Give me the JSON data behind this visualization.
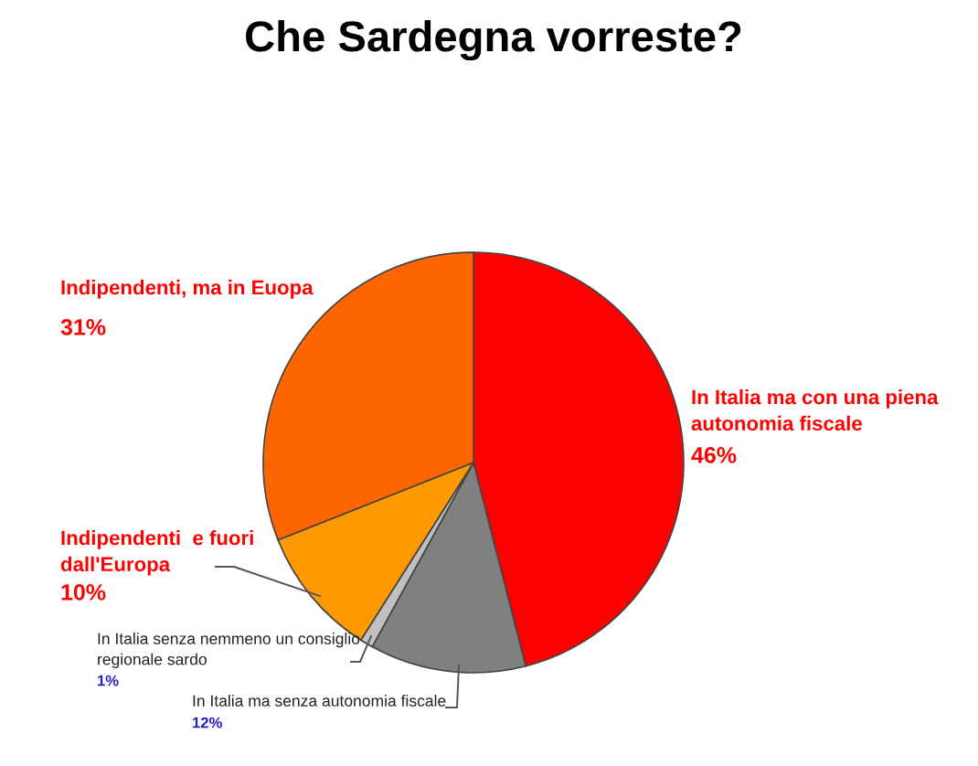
{
  "chart_data": {
    "type": "pie",
    "title": "Che Sardegna vorreste?",
    "categories": [
      "In Italia ma con una piena autonomia fiscale",
      "In Italia ma senza autonomia fiscale",
      "In Italia senza nemmeno un consiglio regionale sardo",
      "Indipendenti  e fuori dall'Europa",
      "Indipendenti, ma in Euopa"
    ],
    "values": [
      46,
      12,
      1,
      10,
      31
    ],
    "colors": [
      "#ff0000",
      "#808080",
      "#c0c0c0",
      "#ff9900",
      "#ff6600"
    ],
    "value_labels": [
      "46%",
      "12%",
      "1%",
      "10%",
      "31%"
    ]
  }
}
